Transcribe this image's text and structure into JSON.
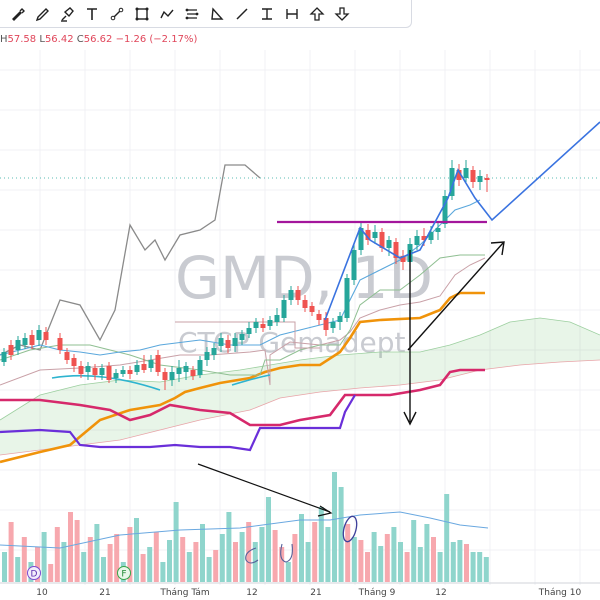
{
  "toolbar": {
    "tools": [
      {
        "name": "brush-icon"
      },
      {
        "name": "pencil-icon"
      },
      {
        "name": "highlighter-icon"
      },
      {
        "name": "text-icon"
      },
      {
        "name": "line-tool-icon"
      },
      {
        "name": "rectangle-icon"
      },
      {
        "name": "path-icon"
      },
      {
        "name": "horizontal-lines-icon"
      },
      {
        "name": "triangle-icon"
      },
      {
        "name": "trend-line-icon"
      },
      {
        "name": "vertical-range-icon"
      },
      {
        "name": "horizontal-range-icon"
      },
      {
        "name": "arrow-up-icon"
      },
      {
        "name": "arrow-down-icon"
      }
    ]
  },
  "ohlc": {
    "h_key": "H",
    "h_val": "57.58",
    "l_key": "L",
    "l_val": "56.42",
    "c_key": "C",
    "c_val": "56.62",
    "change": "−1.26 (−2.17%)"
  },
  "watermark": {
    "symbol": "GMD, 1D",
    "name": "CTCP Gemadept"
  },
  "chart_data": {
    "type": "candlestick",
    "x_ticks": [
      "10",
      "21",
      "Tháng Tám",
      "12",
      "21",
      "Tháng 9",
      "12",
      "Tháng 10"
    ],
    "event_markers": [
      "D",
      "F"
    ],
    "colors": {
      "up": "#26a69a",
      "down": "#ef5350",
      "vol_up": "#8fd5cc",
      "vol_down": "#f7a8ae"
    },
    "series": [
      {
        "name": "",
        "color": "#8a8a8a"
      },
      {
        "name": "",
        "color": "#f0930a"
      },
      {
        "name": "",
        "color": "#d6296b"
      },
      {
        "name": "",
        "color": "#6a2fd9"
      }
    ]
  }
}
